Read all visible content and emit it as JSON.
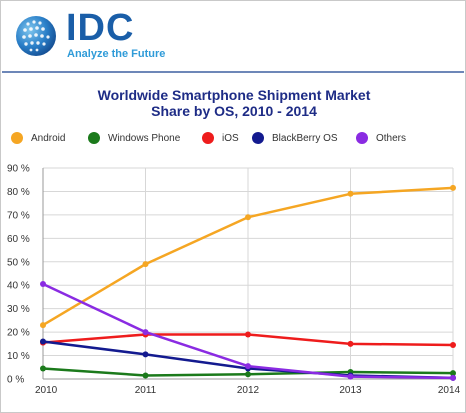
{
  "header": {
    "logo_word": "IDC",
    "logo_tagline": "Analyze the Future"
  },
  "colors": {
    "android": "#f5a623",
    "windows_phone": "#1b7a1b",
    "ios": "#ee1c1c",
    "blackberry": "#131a8f",
    "others": "#8a2be2",
    "grid": "#d7d7d7",
    "title": "#1e2c86",
    "logo_blue": "#1a5ea8"
  },
  "chart_data": {
    "type": "line",
    "title_line1": "Worldwide Smartphone Shipment Market",
    "title_line2": "Share by OS, 2010 - 2014",
    "x": [
      "2010",
      "2011",
      "2012",
      "2013",
      "2014"
    ],
    "ylim": [
      0,
      90
    ],
    "yticks": [
      "0 %",
      "10 %",
      "20 %",
      "30 %",
      "40 %",
      "50 %",
      "60 %",
      "70 %",
      "80 %",
      "90 %"
    ],
    "grid": true,
    "legend_position": "top",
    "series": [
      {
        "name": "Android",
        "color": "#f5a623",
        "values": [
          23,
          49,
          69,
          79,
          81.5
        ]
      },
      {
        "name": "Windows Phone",
        "color": "#1b7a1b",
        "values": [
          4.5,
          1.5,
          2,
          3,
          2.5
        ]
      },
      {
        "name": "iOS",
        "color": "#ee1c1c",
        "values": [
          15.5,
          19,
          19,
          15,
          14.5
        ]
      },
      {
        "name": "BlackBerry OS",
        "color": "#131a8f",
        "values": [
          16,
          10.5,
          4.5,
          1.5,
          0.5
        ]
      },
      {
        "name": "Others",
        "color": "#8a2be2",
        "values": [
          40.5,
          20,
          5.5,
          1,
          0.5
        ]
      }
    ]
  }
}
